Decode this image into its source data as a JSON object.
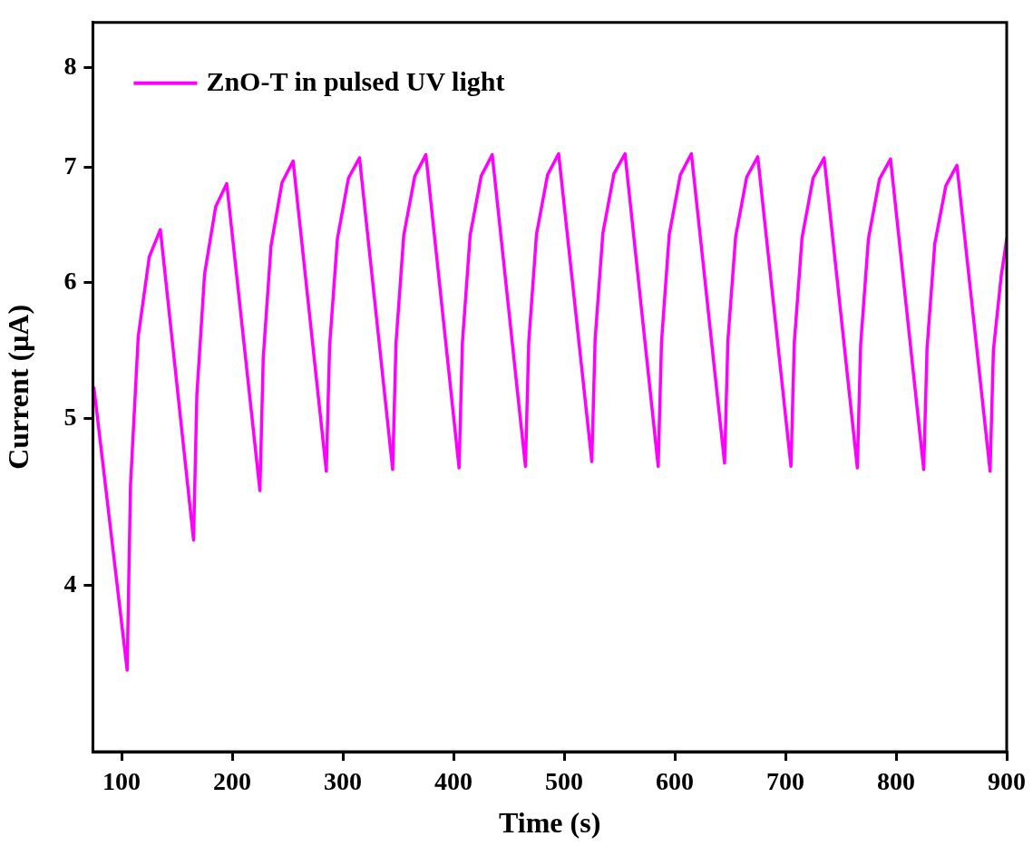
{
  "chart_data": {
    "type": "line",
    "xlabel": "Time (s)",
    "ylabel": "Current (μA)",
    "log": "y",
    "grid": false,
    "legend": "top left",
    "marker": "none",
    "line_style": "solid",
    "xlim": [
      74,
      900
    ],
    "xticks": [
      100,
      200,
      300,
      400,
      500,
      600,
      700,
      800,
      900
    ],
    "ylim": [
      3.2,
      8.5
    ],
    "yticks": [
      4,
      5,
      6,
      7,
      8
    ],
    "series": [
      {
        "name": "ZnO-T in pulsed UV light",
        "color": "#ff00ff",
        "x": [
          75,
          105,
          108,
          115,
          125,
          135,
          165,
          168,
          175,
          185,
          195,
          225,
          228,
          235,
          245,
          255,
          285,
          288,
          295,
          305,
          315,
          345,
          348,
          355,
          365,
          375,
          405,
          408,
          415,
          425,
          435,
          465,
          468,
          475,
          485,
          495,
          525,
          528,
          535,
          545,
          555,
          585,
          588,
          595,
          605,
          615,
          645,
          648,
          655,
          665,
          675,
          705,
          708,
          715,
          725,
          735,
          765,
          768,
          775,
          785,
          795,
          825,
          828,
          835,
          845,
          855,
          885,
          888,
          895,
          900
        ],
        "values": [
          5.21,
          3.57,
          4.57,
          5.58,
          6.21,
          6.44,
          4.25,
          5.16,
          6.07,
          6.64,
          6.85,
          4.54,
          5.42,
          6.3,
          6.86,
          7.06,
          4.66,
          5.51,
          6.36,
          6.9,
          7.09,
          4.67,
          5.53,
          6.39,
          6.92,
          7.12,
          4.68,
          5.53,
          6.39,
          6.92,
          7.12,
          4.69,
          5.54,
          6.4,
          6.93,
          7.13,
          4.72,
          5.56,
          6.41,
          6.94,
          7.13,
          4.69,
          5.54,
          6.4,
          6.93,
          7.13,
          4.71,
          5.55,
          6.38,
          6.91,
          7.1,
          4.69,
          5.53,
          6.37,
          6.9,
          7.09,
          4.68,
          5.52,
          6.36,
          6.89,
          7.08,
          4.67,
          5.49,
          6.32,
          6.83,
          7.02,
          4.66,
          5.48,
          6.05,
          6.36
        ]
      }
    ]
  }
}
